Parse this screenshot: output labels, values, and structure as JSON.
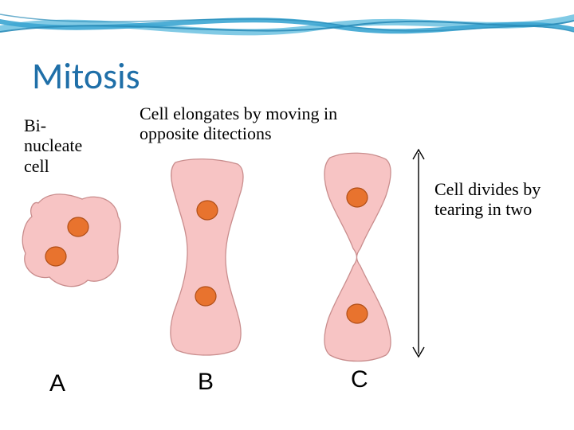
{
  "title": "Mitosis",
  "title_color": "#1f6fa8",
  "title_fontsize": 46,
  "background_color": "#ffffff",
  "header_wave": {
    "colors": [
      "#3ba5d1",
      "#6bc1e0",
      "#2a8cb8"
    ],
    "height": 65
  },
  "labels": {
    "binucleate": "Bi-\nnucleate\ncell",
    "elongates": "Cell elongates by moving in opposite ditections",
    "divides": "Cell divides by tearing in two",
    "fontsize": 22,
    "font_color": "#000000"
  },
  "stages": {
    "A": {
      "label": "A"
    },
    "B": {
      "label": "B"
    },
    "C": {
      "label": "C"
    },
    "label_fontsize": 30
  },
  "cell_style": {
    "fill": "#f7c4c4",
    "stroke": "#c98d8d",
    "nucleus_fill": "#e8732e",
    "nucleus_stroke": "#b04e17"
  },
  "arrow": {
    "stroke": "#000000",
    "stroke_width": 1.4
  }
}
